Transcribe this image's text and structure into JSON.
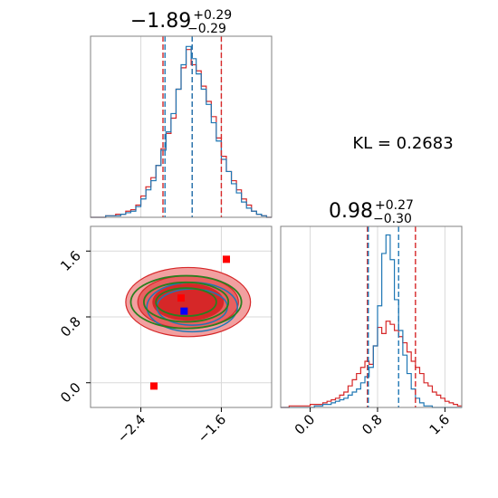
{
  "chart_data": [
    {
      "type": "histogram",
      "panel": "marginal-x",
      "title": {
        "main": "−1.89",
        "sup": "+0.29",
        "sub": "−0.29"
      },
      "xlim": [
        -2.9,
        -1.1
      ],
      "grid": true,
      "bin_edges": [
        -2.9,
        -2.85,
        -2.8,
        -2.75,
        -2.7,
        -2.65,
        -2.6,
        -2.55,
        -2.5,
        -2.45,
        -2.4,
        -2.35,
        -2.3,
        -2.25,
        -2.2,
        -2.15,
        -2.1,
        -2.05,
        -2.0,
        -1.95,
        -1.9,
        -1.85,
        -1.8,
        -1.75,
        -1.7,
        -1.65,
        -1.6,
        -1.55,
        -1.5,
        -1.45,
        -1.4,
        -1.35,
        -1.3,
        -1.25,
        -1.2,
        -1.15,
        -1.1
      ],
      "series": [
        {
          "color": "#d62728",
          "values": [
            0,
            0,
            0,
            1,
            1,
            2,
            2,
            4,
            5,
            8,
            14,
            20,
            26,
            34,
            45,
            55,
            65,
            84,
            98,
            110,
            100,
            96,
            86,
            76,
            66,
            52,
            40,
            30,
            24,
            18,
            12,
            8,
            4,
            2,
            1,
            0
          ]
        },
        {
          "color": "#1f77b4",
          "values": [
            0,
            0,
            0,
            1,
            1,
            1,
            2,
            3,
            4,
            7,
            12,
            18,
            24,
            34,
            44,
            56,
            68,
            84,
            100,
            112,
            104,
            94,
            84,
            74,
            62,
            50,
            38,
            30,
            22,
            16,
            10,
            6,
            4,
            2,
            1,
            0
          ]
        }
      ],
      "vlines": [
        {
          "x": -2.18,
          "color": "#d62728"
        },
        {
          "x": -2.16,
          "color": "#1f77b4"
        },
        {
          "x": -1.6,
          "color": "#d62728"
        },
        {
          "x": -1.89,
          "color": "#d62728"
        },
        {
          "x": -1.89,
          "color": "#1f77b4"
        }
      ]
    },
    {
      "type": "contour",
      "panel": "joint",
      "xlim": [
        -2.9,
        -1.1
      ],
      "ylim": [
        -0.3,
        1.9
      ],
      "grid": true,
      "x_ticks": [
        "−2.4",
        "−1.6"
      ],
      "x_tick_values": [
        -2.4,
        -1.6
      ],
      "y_ticks": [
        "0.0",
        "0.8",
        "1.6"
      ],
      "y_tick_values": [
        0.0,
        0.8,
        1.6
      ],
      "red_fill_levels": [
        {
          "label": "outer",
          "center": [
            -1.93,
            0.98
          ],
          "radii": [
            0.62,
            0.42
          ],
          "color": "#f2a0a0"
        },
        {
          "label": "mid",
          "center": [
            -1.93,
            0.98
          ],
          "radii": [
            0.5,
            0.32
          ],
          "color": "#e86060"
        },
        {
          "label": "inner",
          "center": [
            -1.93,
            0.98
          ],
          "radii": [
            0.35,
            0.22
          ],
          "color": "#d62728"
        }
      ],
      "blue_contours": [
        {
          "center": [
            -1.89,
            0.92
          ],
          "radii": [
            0.45,
            0.3
          ]
        },
        {
          "center": [
            -1.89,
            0.92
          ],
          "radii": [
            0.35,
            0.22
          ]
        }
      ],
      "green_contours": [
        {
          "center": [
            -1.95,
            0.98
          ],
          "radii": [
            0.55,
            0.32
          ]
        },
        {
          "center": [
            -1.95,
            0.98
          ],
          "radii": [
            0.42,
            0.24
          ]
        },
        {
          "center": [
            -1.95,
            0.98
          ],
          "radii": [
            0.3,
            0.17
          ]
        }
      ],
      "points": [
        {
          "x": -1.55,
          "y": 1.5,
          "color": "#ff0000"
        },
        {
          "x": -2.0,
          "y": 1.03,
          "color": "#ff0000"
        },
        {
          "x": -1.97,
          "y": 0.87,
          "color": "#0000ff"
        },
        {
          "x": -2.27,
          "y": -0.04,
          "color": "#ff0000"
        }
      ]
    },
    {
      "type": "histogram",
      "panel": "marginal-y",
      "title": {
        "main": "0.98",
        "sup": "+0.27",
        "sub": "−0.30"
      },
      "xlim": [
        -0.35,
        1.8
      ],
      "grid": true,
      "x_ticks": [
        "0.0",
        "0.8",
        "1.6"
      ],
      "x_tick_values": [
        0.0,
        0.8,
        1.6
      ],
      "bin_edges": [
        -0.35,
        -0.3,
        -0.25,
        -0.2,
        -0.15,
        -0.1,
        -0.05,
        0.0,
        0.05,
        0.1,
        0.15,
        0.2,
        0.25,
        0.3,
        0.35,
        0.4,
        0.45,
        0.5,
        0.55,
        0.6,
        0.65,
        0.7,
        0.75,
        0.8,
        0.85,
        0.9,
        0.95,
        1.0,
        1.05,
        1.1,
        1.15,
        1.2,
        1.25,
        1.3,
        1.35,
        1.4,
        1.45,
        1.5,
        1.55,
        1.6,
        1.65,
        1.7,
        1.75,
        1.8
      ],
      "series": [
        {
          "color": "#d62728",
          "values": [
            0,
            0,
            1,
            1,
            1,
            1,
            1,
            2,
            2,
            2,
            3,
            4,
            5,
            6,
            8,
            10,
            14,
            18,
            22,
            26,
            30,
            28,
            40,
            52,
            48,
            56,
            54,
            50,
            46,
            42,
            36,
            30,
            26,
            22,
            16,
            14,
            10,
            8,
            6,
            4,
            3,
            2,
            1
          ]
        },
        {
          "color": "#1f77b4",
          "values": [
            0,
            0,
            0,
            0,
            0,
            0,
            0,
            0,
            1,
            1,
            2,
            2,
            3,
            4,
            5,
            6,
            8,
            10,
            12,
            16,
            20,
            26,
            40,
            66,
            100,
            112,
            96,
            70,
            50,
            34,
            22,
            12,
            6,
            3,
            1,
            1,
            0,
            0,
            0,
            0,
            0,
            0,
            0
          ]
        }
      ],
      "vlines": [
        {
          "x": 0.68,
          "color": "#d62728"
        },
        {
          "x": 0.69,
          "color": "#1f77b4"
        },
        {
          "x": 1.05,
          "color": "#1f77b4"
        },
        {
          "x": 1.25,
          "color": "#d62728"
        }
      ]
    }
  ],
  "annotation": {
    "kl_text": "KL = 0.2683"
  }
}
